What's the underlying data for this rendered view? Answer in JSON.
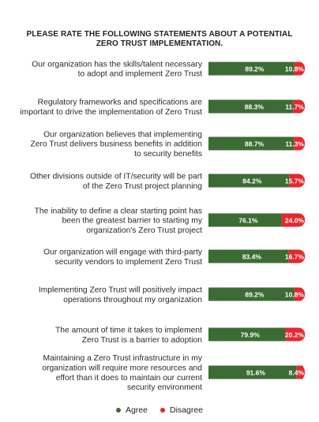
{
  "chart_data": {
    "type": "bar",
    "orientation": "horizontal",
    "stacked": true,
    "title_lines": [
      "PLEASE RATE THE FOLLOWING STATEMENTS ABOUT A POTENTIAL",
      "ZERO TRUST IMPLEMENTATION."
    ],
    "categories": [
      [
        "Our organization has the skills/talent necessary",
        "to adopt and implement Zero Trust"
      ],
      [
        "Regulatory frameworks and specifications are",
        "important to drive the implementation of Zero Trust"
      ],
      [
        "Our organization believes that implementing",
        "Zero Trust delivers business benefits in addition",
        "to security benefits"
      ],
      [
        "Other divisions outside of IT/security will be part",
        "of the Zero Trust project planning"
      ],
      [
        "The inability to define a clear starting point has",
        "been the greatest barrier to starting my",
        "organization's Zero Trust project"
      ],
      [
        "Our organization will engage with third-party",
        "security vendors to implement Zero Trust"
      ],
      [
        "Implementing Zero Trust will positively impact",
        "operations throughout my organization"
      ],
      [
        "The amount of time it takes to implement",
        "Zero Trust is a barrier to adoption"
      ],
      [
        "Maintaining a Zero Trust infrastructure in my",
        "organization will require more resources and",
        "effort than it does to maintain our current",
        "security environment"
      ]
    ],
    "series": [
      {
        "name": "Agree",
        "color": "#3d6b35",
        "values": [
          89.2,
          88.3,
          88.7,
          84.2,
          76.1,
          83.4,
          89.2,
          79.9,
          91.6
        ],
        "labels": [
          "89.2%",
          "88.3%",
          "88.7%",
          "84.2%",
          "76.1%",
          "83.4%",
          "89.2%",
          "79.9%",
          "91.6%"
        ]
      },
      {
        "name": "Disagree",
        "color": "#e8262c",
        "values": [
          10.8,
          11.7,
          11.3,
          15.7,
          24.0,
          16.7,
          10.8,
          20.2,
          8.4
        ],
        "labels": [
          "10.8%",
          "11.7%",
          "11.3%",
          "15.7%",
          "24.0%",
          "16.7%",
          "10.8%",
          "20.2%",
          "8.4%"
        ]
      }
    ],
    "xlim": [
      0,
      100
    ],
    "grid": false,
    "legend_position": "bottom-center"
  }
}
